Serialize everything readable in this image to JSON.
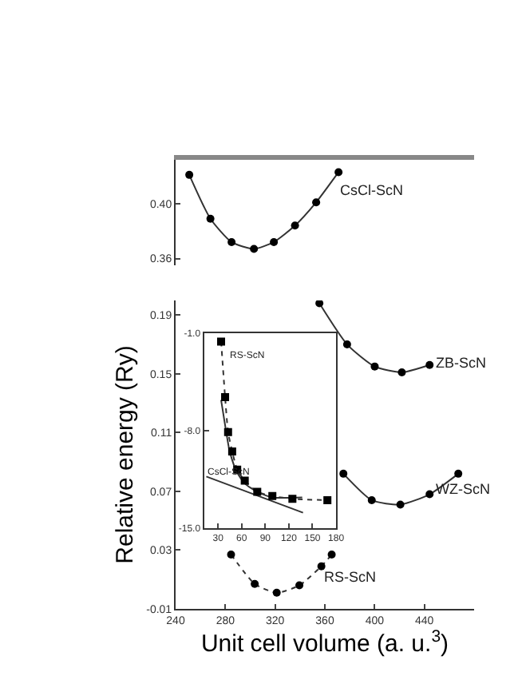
{
  "chart_data": [
    {
      "type": "line",
      "xlim": [
        240,
        480
      ],
      "ylim": [
        0.355,
        0.432
      ],
      "yticks": [
        {
          "value": 0.36,
          "label": "0.36"
        },
        {
          "value": 0.4,
          "label": "0.40"
        }
      ],
      "tick_labels": "y",
      "marker": "circle",
      "series": [
        {
          "color": "#333333",
          "line_style": "solid",
          "x": [
            251,
            268,
            285,
            303,
            319,
            336,
            353,
            371
          ],
          "values": [
            0.421,
            0.389,
            0.372,
            0.367,
            0.372,
            0.384,
            0.401,
            0.423
          ]
        }
      ],
      "annotations": [
        {
          "text": "CsCl-ScN",
          "x": 369,
          "y": 0.41
        }
      ]
    },
    {
      "type": "line",
      "xlim": [
        240,
        480
      ],
      "ylim": [
        -0.01,
        0.2
      ],
      "xticks": [
        240,
        280,
        320,
        360,
        400,
        440
      ],
      "yticks": [
        -0.01,
        0.03,
        0.07,
        0.11,
        0.15,
        0.19
      ],
      "xlabel": "Unit cell volume (a. u.$^{3}$)",
      "ylabel": "Relative energy (Ry)",
      "marker": "circle",
      "series": [
        {
          "color": "#333333",
          "line_style": "solid",
          "x": [
            355.6,
            377.9,
            400.1,
            421.9,
            444.2
          ],
          "values": [
            0.198,
            0.17,
            0.155,
            0.151,
            0.156
          ]
        },
        {
          "color": "#333333",
          "line_style": "solid",
          "x": [
            374.9,
            397.7,
            420.7,
            444.2,
            467.3
          ],
          "values": [
            0.082,
            0.064,
            0.061,
            0.068,
            0.082
          ]
        },
        {
          "color": "#333333",
          "line_style": "dotted",
          "x": [
            284.6,
            303.6,
            321.3,
            339.5,
            357.2,
            365.5
          ],
          "values": [
            0.027,
            0.007,
            0.001,
            0.006,
            0.019,
            0.027
          ]
        }
      ],
      "annotations": [
        {
          "text": "ZB-ScN",
          "x": 447,
          "y": 0.158
        },
        {
          "text": "WZ-ScN",
          "x": 446,
          "y": 0.072
        },
        {
          "text": "RS-ScN",
          "x": 357,
          "y": 0.012
        }
      ]
    },
    {
      "type": "line",
      "xlim": [
        12,
        180
      ],
      "ylim": [
        -15,
        -1
      ],
      "xticks": [
        30,
        60,
        90,
        120,
        150,
        180
      ],
      "yticks": [
        {
          "value": -15,
          "label": "-15.0"
        },
        {
          "value": -8,
          "label": "-8.0"
        },
        {
          "value": -1,
          "label": "-1.0"
        }
      ],
      "series": [
        {
          "color": "#333333",
          "line_style": "dotted",
          "marker": "square",
          "x": [
            33.8,
            38.9,
            42.7,
            47.9,
            54.3,
            63.9,
            79.8,
            99,
            124.5,
            169
          ],
          "values": [
            -1.6,
            -5.6,
            -8.1,
            -9.5,
            -10.8,
            -11.6,
            -12.4,
            -12.7,
            -12.9,
            -13
          ]
        },
        {
          "color": "#333333",
          "line_style": "solid",
          "marker": "none",
          "x": [
            33.8,
            38.3,
            44.7,
            53,
            63.9,
            79.8,
            99,
            137
          ],
          "values": [
            -5.8,
            -7.4,
            -9.5,
            -10.9,
            -11.8,
            -12.4,
            -12.8,
            -12.8
          ]
        },
        {
          "color": "#333333",
          "line_style": "solid",
          "marker": "none",
          "x": [
            15,
            138
          ],
          "values": [
            -11.3,
            -13.9
          ]
        }
      ],
      "annotations": [
        {
          "text": "RS-ScN",
          "x": 40,
          "y": -2.6
        },
        {
          "text": "CsCl-ScN",
          "x": 12.5,
          "y": -10.95
        }
      ]
    }
  ]
}
